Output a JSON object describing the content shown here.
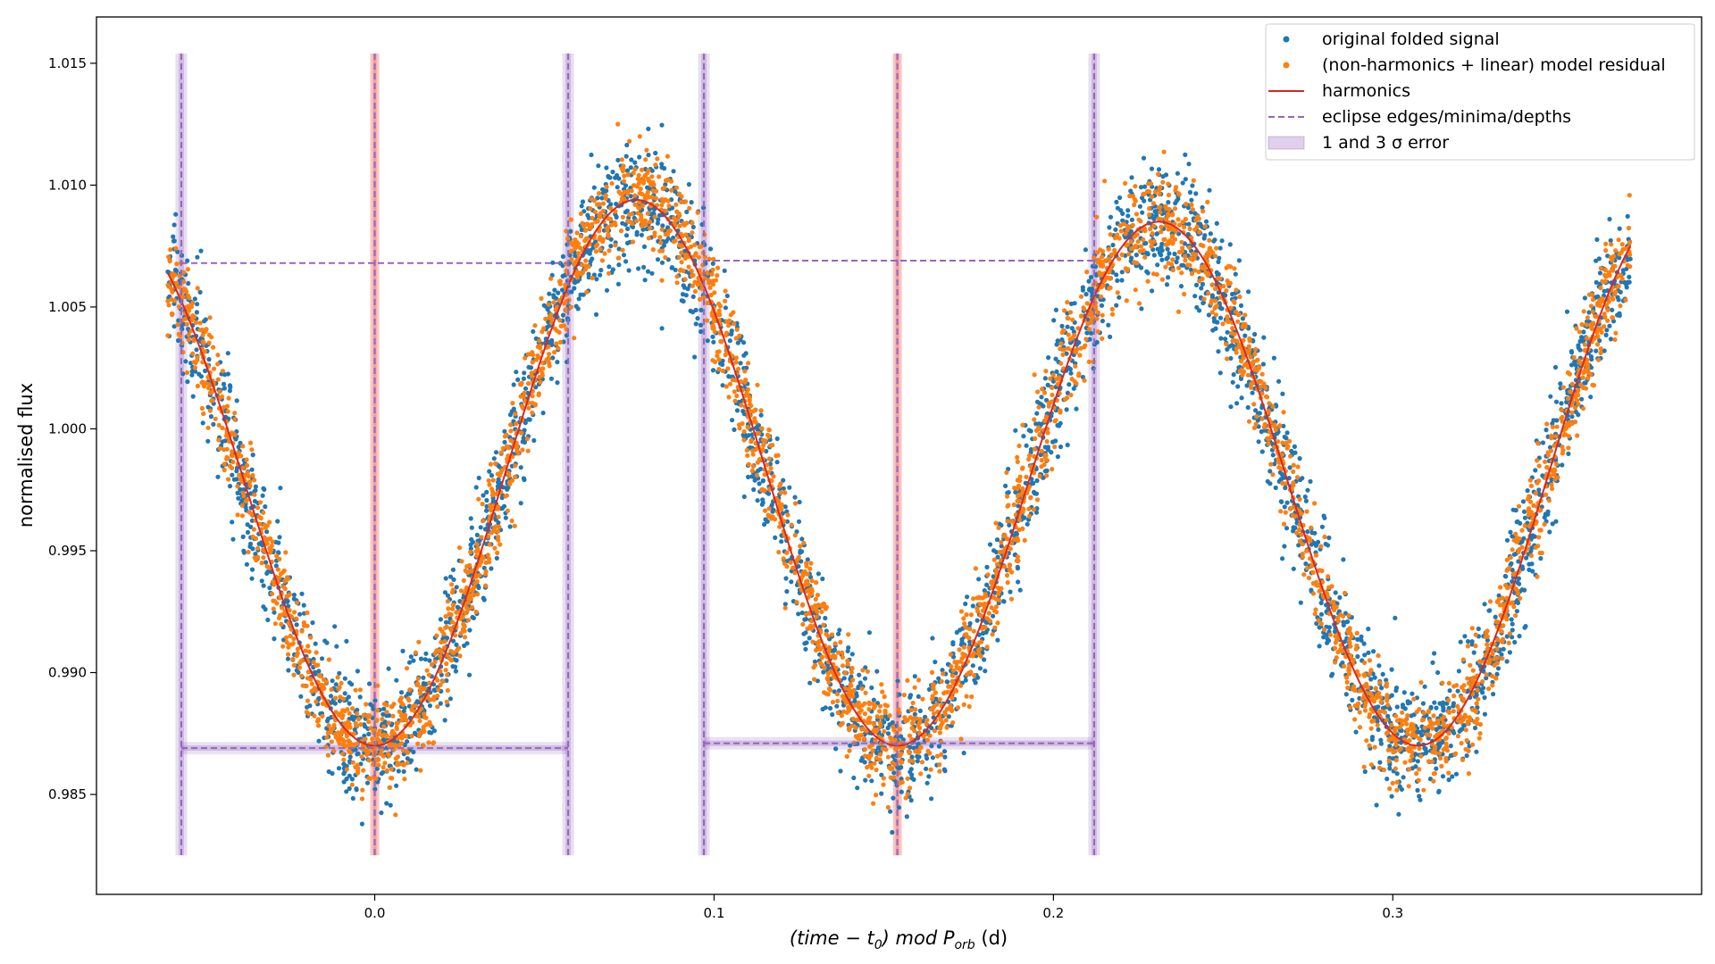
{
  "chart_data": {
    "type": "scatter",
    "title": "",
    "xlabel_parts": {
      "pre": "(time − t",
      "sub1": "0",
      "mid": ") mod P",
      "sub2": "orb",
      "post": " (d)"
    },
    "ylabel": "normalised flux",
    "xlim": [
      -0.082,
      0.391
    ],
    "ylim": [
      0.9809,
      1.0169
    ],
    "xticks": [
      0.0,
      0.1,
      0.2,
      0.3
    ],
    "xtick_labels": [
      "0.0",
      "0.1",
      "0.2",
      "0.3"
    ],
    "yticks": [
      0.985,
      0.99,
      0.995,
      1.0,
      1.005,
      1.01,
      1.015
    ],
    "ytick_labels": [
      "0.985",
      "0.990",
      "0.995",
      "1.000",
      "1.005",
      "1.010",
      "1.015"
    ],
    "grid": false,
    "legend_position": "top-right",
    "legend": [
      {
        "label": "original folded signal",
        "kind": "dot",
        "color": "#1f77b4"
      },
      {
        "label": "(non-harmonics + linear) model residual",
        "kind": "dot",
        "color": "#ff7f0e"
      },
      {
        "label": "harmonics",
        "kind": "line",
        "color": "#d62728"
      },
      {
        "label": "eclipse edges/minima/depths",
        "kind": "dash",
        "color": "#9467bd"
      },
      {
        "label": "1 and 3 σ error",
        "kind": "patch",
        "color": "#9467bd"
      }
    ],
    "harmonics": {
      "x_range": [
        -0.061,
        0.37
      ],
      "period": 0.3075,
      "minima": [
        {
          "x": 0.0,
          "y": 0.987
        },
        {
          "x": 0.154,
          "y": 0.987
        },
        {
          "x": 0.3075,
          "y": 0.987
        }
      ],
      "maxima": [
        {
          "x": 0.077,
          "y": 1.0094
        },
        {
          "x": 0.231,
          "y": 1.0085
        }
      ]
    },
    "noise_sigma": 0.0012,
    "points_per_series": 3500,
    "eclipse_edges": [
      -0.057,
      0.057,
      0.097,
      0.212
    ],
    "eclipse_minima": [
      0.0,
      0.154
    ],
    "edge_line_range": [
      0.9825,
      1.0154
    ],
    "depth_lines": [
      {
        "x_from": -0.057,
        "x_to": 0.057,
        "y": 0.9869
      },
      {
        "x_from": 0.097,
        "x_to": 0.212,
        "y": 0.9871
      }
    ],
    "upper_levels": [
      {
        "x_from": -0.057,
        "x_to": 0.057,
        "y": 1.0068
      },
      {
        "x_from": 0.097,
        "x_to": 0.212,
        "y": 1.0069
      }
    ],
    "colors": {
      "original": "#1f77b4",
      "residual": "#ff7f0e",
      "harmonics": "#d62728",
      "eclipse": "#9467bd",
      "minima_band": "#f08080"
    }
  }
}
